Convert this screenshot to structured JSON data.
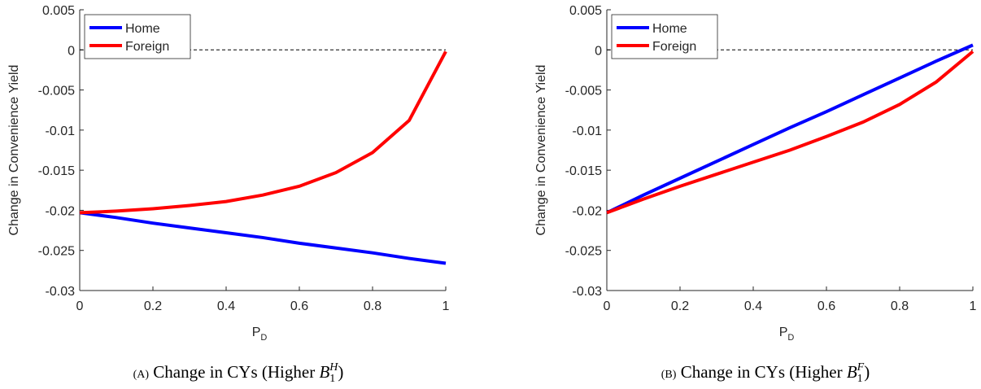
{
  "chart_data": [
    {
      "type": "line",
      "ylabel": "Change in Convenience Yield",
      "xlabel": "P",
      "xlabel_subscript": "D",
      "caption": {
        "label": "(A)",
        "text": "Change in CYs (Higher",
        "symbol": "B",
        "subscript": "1",
        "superscript": "H",
        "close": ")"
      },
      "x": [
        0,
        0.1,
        0.2,
        0.3,
        0.4,
        0.5,
        0.6,
        0.7,
        0.8,
        0.9,
        1
      ],
      "series": [
        {
          "name": "Home",
          "color": "#0000ff",
          "values": [
            -0.0203,
            -0.0209,
            -0.0216,
            -0.0222,
            -0.0228,
            -0.0234,
            -0.0241,
            -0.0247,
            -0.0253,
            -0.026,
            -0.0266
          ]
        },
        {
          "name": "Foreign",
          "color": "#ff0000",
          "values": [
            -0.0203,
            -0.0201,
            -0.0198,
            -0.0194,
            -0.0189,
            -0.0181,
            -0.017,
            -0.0153,
            -0.0128,
            -0.0088,
            -0.0002
          ]
        }
      ],
      "xlim": [
        0,
        1
      ],
      "xticks": [
        0,
        0.2,
        0.4,
        0.6,
        0.8,
        1
      ],
      "ylim": [
        -0.03,
        0.005
      ],
      "yticks": [
        0.005,
        0,
        -0.005,
        -0.01,
        -0.015,
        -0.02,
        -0.025,
        -0.03
      ],
      "reference_line": 0,
      "legend": "upper-left"
    },
    {
      "type": "line",
      "ylabel": "Change in Convenience Yield",
      "xlabel": "P",
      "xlabel_subscript": "D",
      "caption": {
        "label": "(B)",
        "text": "Change in CYs (Higher",
        "symbol": "B",
        "subscript": "1",
        "superscript": "F",
        "close": ")"
      },
      "x": [
        0,
        0.1,
        0.2,
        0.3,
        0.4,
        0.5,
        0.6,
        0.7,
        0.8,
        0.9,
        1
      ],
      "series": [
        {
          "name": "Home",
          "color": "#0000ff",
          "values": [
            -0.0203,
            -0.0181,
            -0.016,
            -0.0139,
            -0.0118,
            -0.0097,
            -0.0077,
            -0.0056,
            -0.0035,
            -0.0014,
            0.0006
          ]
        },
        {
          "name": "Foreign",
          "color": "#ff0000",
          "values": [
            -0.0203,
            -0.0186,
            -0.017,
            -0.0155,
            -0.014,
            -0.0125,
            -0.0108,
            -0.009,
            -0.0068,
            -0.004,
            -0.0002
          ]
        }
      ],
      "xlim": [
        0,
        1
      ],
      "xticks": [
        0,
        0.2,
        0.4,
        0.6,
        0.8,
        1
      ],
      "ylim": [
        -0.03,
        0.005
      ],
      "yticks": [
        0.005,
        0,
        -0.005,
        -0.01,
        -0.015,
        -0.02,
        -0.025,
        -0.03
      ],
      "reference_line": 0,
      "legend": "upper-left"
    }
  ]
}
